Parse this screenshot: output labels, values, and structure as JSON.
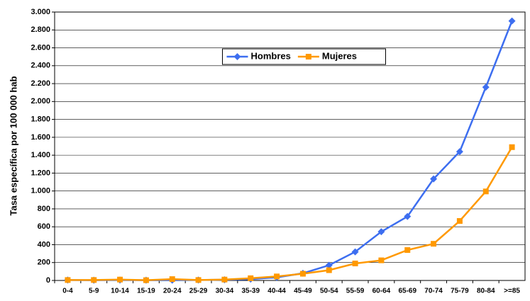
{
  "chart_data": {
    "type": "line",
    "y_label": "Tasa específica por 100 000 hab",
    "categories": [
      "0-4",
      "5-9",
      "10-14",
      "15-19",
      "20-24",
      "25-29",
      "30-34",
      "35-39",
      "40-44",
      "45-49",
      "50-54",
      "55-59",
      "60-64",
      "65-69",
      "70-74",
      "75-79",
      "80-84",
      ">=85"
    ],
    "series": [
      {
        "name": "Hombres",
        "color": "#3d6ef0",
        "marker": "diamond",
        "values": [
          5,
          3,
          5,
          3,
          3,
          5,
          8,
          15,
          35,
          80,
          170,
          320,
          545,
          715,
          1135,
          1440,
          2160,
          2900
        ]
      },
      {
        "name": "Mujeres",
        "color": "#ff9900",
        "marker": "square",
        "values": [
          5,
          5,
          10,
          3,
          15,
          5,
          10,
          25,
          45,
          75,
          115,
          190,
          225,
          340,
          410,
          665,
          995,
          1490
        ]
      }
    ],
    "ylim": [
      0,
      3000
    ],
    "yticks": [
      0,
      200,
      400,
      600,
      800,
      {
        "value": 1000,
        "label": "1.000"
      },
      {
        "value": 1200,
        "label": "1.200"
      },
      {
        "value": 1400,
        "label": "1.400"
      },
      {
        "value": 1600,
        "label": "1.600"
      },
      {
        "value": 1800,
        "label": "1.800"
      },
      {
        "value": 2000,
        "label": "2.000"
      },
      {
        "value": 2200,
        "label": "2.200"
      },
      {
        "value": 2400,
        "label": "2.400"
      },
      {
        "value": 2600,
        "label": "2.600"
      },
      {
        "value": 2800,
        "label": "2.800"
      },
      {
        "value": 3000,
        "label": "3.000"
      }
    ],
    "grid": true,
    "legend": "top"
  }
}
